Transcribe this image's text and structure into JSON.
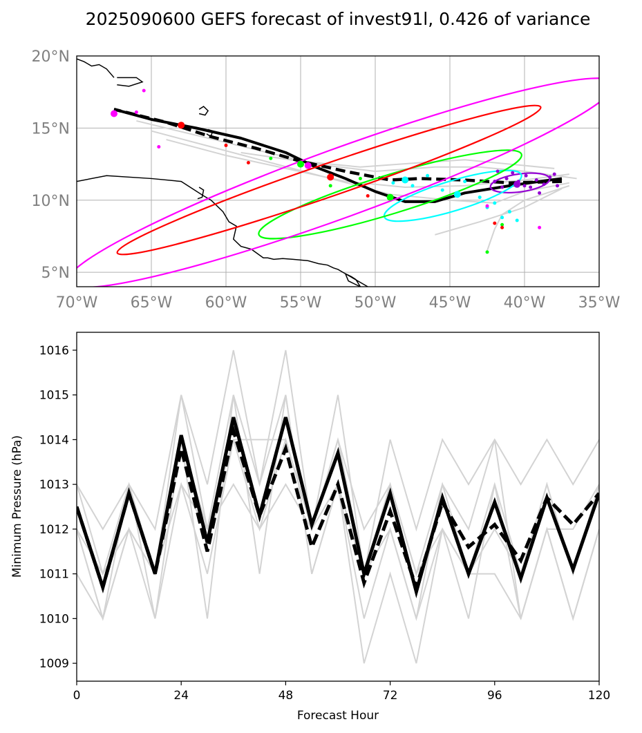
{
  "chart_data": [
    {
      "type": "map",
      "title": "2025090600 GEFS forecast of invest91l, 0.426 of variance",
      "xlim": [
        -70,
        -35
      ],
      "ylim": [
        4,
        20
      ],
      "xticks": [
        -70,
        -65,
        -60,
        -55,
        -50,
        -45,
        -40,
        -35
      ],
      "xtick_labels": [
        "70°W",
        "65°W",
        "60°W",
        "55°W",
        "50°W",
        "45°W",
        "40°W",
        "35°W"
      ],
      "yticks": [
        5,
        10,
        15,
        20
      ],
      "ytick_labels": [
        "5°N",
        "10°N",
        "15°N",
        "20°N"
      ],
      "grid": true,
      "colors": {
        "mean": "#000000",
        "spread": "#d3d3d3",
        "day1": "#9400d3",
        "day2": "#00ffff",
        "day3": "#00ff00",
        "day4": "#ff0000",
        "day5": "#ff00ff",
        "coast": "#000000"
      },
      "mean_track": {
        "lon": [
          -37.5,
          -39,
          -41,
          -44,
          -46,
          -48,
          -50,
          -52,
          -54,
          -56,
          -59,
          -62,
          -65,
          -67.5
        ],
        "lat": [
          11.5,
          11.3,
          11.0,
          10.5,
          9.9,
          9.9,
          10.6,
          11.5,
          12.3,
          13.3,
          14.3,
          15.0,
          15.6,
          16.3
        ]
      },
      "control_track": {
        "lon": [
          -37.5,
          -41,
          -44,
          -47,
          -49,
          -52,
          -55,
          -58,
          -61,
          -64,
          -67.5
        ],
        "lat": [
          11.3,
          11.2,
          11.4,
          11.5,
          11.4,
          12.0,
          12.7,
          13.6,
          14.4,
          15.4,
          16.3
        ]
      },
      "ensemble_tracks": [
        {
          "lon": [
            -36.5,
            -40,
            -43,
            -46,
            -50,
            -54,
            -58,
            -62,
            -66
          ],
          "lat": [
            11.5,
            12.0,
            12.3,
            12.3,
            12.0,
            12.5,
            13.5,
            14.5,
            15.5
          ]
        },
        {
          "lon": [
            -37,
            -40,
            -42,
            -45,
            -49,
            -53,
            -57,
            -61,
            -65
          ],
          "lat": [
            11.2,
            10.6,
            9.8,
            10.0,
            10.4,
            11.5,
            12.6,
            13.7,
            14.8
          ]
        },
        {
          "lon": [
            -37,
            -40,
            -41.5,
            -42,
            -42.5
          ],
          "lat": [
            11.0,
            10.0,
            9.0,
            8.0,
            6.5
          ]
        },
        {
          "lon": [
            -38,
            -41,
            -44,
            -47,
            -51,
            -55,
            -59
          ],
          "lat": [
            12.2,
            12.5,
            12.8,
            12.6,
            12.3,
            12.7,
            13.3
          ]
        },
        {
          "lon": [
            -37.5,
            -40,
            -43,
            -46
          ],
          "lat": [
            10.8,
            9.5,
            8.5,
            7.6
          ]
        },
        {
          "lon": [
            -37,
            -40,
            -44,
            -48,
            -52,
            -56,
            -60,
            -64
          ],
          "lat": [
            11.8,
            11.4,
            11.0,
            10.9,
            11.3,
            12.2,
            13.1,
            14.2
          ]
        }
      ],
      "ellipses": [
        {
          "day": 1,
          "center": [
            -40.3,
            11.2
          ],
          "semi_major_deg": 2.0,
          "semi_minor_deg": 0.6,
          "angle_deg": -8,
          "color": "#9400d3"
        },
        {
          "day": 2,
          "center": [
            -44.8,
            10.3
          ],
          "semi_major_deg": 4.8,
          "semi_minor_deg": 1.0,
          "angle_deg": -17,
          "color": "#00ffff"
        },
        {
          "day": 3,
          "center": [
            -49.0,
            10.4
          ],
          "semi_major_deg": 9.2,
          "semi_minor_deg": 1.3,
          "angle_deg": -17,
          "color": "#00ff00"
        },
        {
          "day": 4,
          "center": [
            -53.1,
            11.4
          ],
          "semi_major_deg": 15.0,
          "semi_minor_deg": 1.1,
          "angle_deg": -19,
          "color": "#ff0000"
        },
        {
          "day": 5,
          "center": [
            -52.3,
            11.2
          ],
          "semi_major_deg": 19.5,
          "semi_minor_deg": 2.3,
          "angle_deg": -20,
          "color": "#ff00ff"
        }
      ],
      "mean_positions": [
        {
          "day": 1,
          "lon": -40.5,
          "lat": 11.1
        },
        {
          "day": 2,
          "lon": -44.5,
          "lat": 10.4
        },
        {
          "day": 3,
          "lon": -49,
          "lat": 10.2
        },
        {
          "day": 4,
          "lon": -63,
          "lat": 15.2
        },
        {
          "day": 5,
          "lon": -67.5,
          "lat": 16.0
        }
      ],
      "control_positions": [
        {
          "day": 2,
          "lon": -48,
          "lat": 11.4
        },
        {
          "day": 3,
          "lon": -55,
          "lat": 12.5
        },
        {
          "day": 4,
          "lon": -53,
          "lat": 11.6
        },
        {
          "day": 5,
          "lon": -54.5,
          "lat": 12.4
        }
      ],
      "member_points": [
        {
          "day": 1,
          "lon": -41.8,
          "lat": 12.0
        },
        {
          "day": 1,
          "lon": -41.2,
          "lat": 11.5
        },
        {
          "day": 1,
          "lon": -40.8,
          "lat": 11.9
        },
        {
          "day": 1,
          "lon": -40.4,
          "lat": 11.3
        },
        {
          "day": 1,
          "lon": -39.9,
          "lat": 11.7
        },
        {
          "day": 1,
          "lon": -39.6,
          "lat": 10.9
        },
        {
          "day": 1,
          "lon": -39.2,
          "lat": 11.4
        },
        {
          "day": 1,
          "lon": -38.7,
          "lat": 11.1
        },
        {
          "day": 1,
          "lon": -38.3,
          "lat": 11.6
        },
        {
          "day": 1,
          "lon": -37.8,
          "lat": 11.0
        },
        {
          "day": 1,
          "lon": -41.5,
          "lat": 10.9
        },
        {
          "day": 1,
          "lon": -39.0,
          "lat": 10.5
        },
        {
          "day": 1,
          "lon": -42.0,
          "lat": 11.3
        },
        {
          "day": 1,
          "lon": -40.0,
          "lat": 11.0
        },
        {
          "day": 1,
          "lon": -38.0,
          "lat": 11.8
        },
        {
          "day": 2,
          "lon": -46.5,
          "lat": 11.7
        },
        {
          "day": 2,
          "lon": -45.5,
          "lat": 10.7
        },
        {
          "day": 2,
          "lon": -43,
          "lat": 10.2
        },
        {
          "day": 2,
          "lon": -42,
          "lat": 9.8
        },
        {
          "day": 2,
          "lon": -41,
          "lat": 9.2
        },
        {
          "day": 2,
          "lon": -41.5,
          "lat": 8.8
        },
        {
          "day": 2,
          "lon": -42.5,
          "lat": 9.5
        },
        {
          "day": 2,
          "lon": -40.5,
          "lat": 8.6
        },
        {
          "day": 2,
          "lon": -44,
          "lat": 11.3
        },
        {
          "day": 2,
          "lon": -48.8,
          "lat": 11.2
        },
        {
          "day": 2,
          "lon": -47.5,
          "lat": 11.0
        },
        {
          "day": 3,
          "lon": -51,
          "lat": 11.5
        },
        {
          "day": 3,
          "lon": -42.5,
          "lat": 6.4
        },
        {
          "day": 3,
          "lon": -41.5,
          "lat": 8.3
        },
        {
          "day": 3,
          "lon": -53,
          "lat": 11.0
        },
        {
          "day": 3,
          "lon": -57,
          "lat": 12.9
        },
        {
          "day": 4,
          "lon": -60,
          "lat": 13.8
        },
        {
          "day": 4,
          "lon": -58.5,
          "lat": 12.6
        },
        {
          "day": 4,
          "lon": -42,
          "lat": 8.4
        },
        {
          "day": 4,
          "lon": -41.5,
          "lat": 8.1
        },
        {
          "day": 4,
          "lon": -50.5,
          "lat": 10.3
        },
        {
          "day": 5,
          "lon": -65.5,
          "lat": 17.6
        },
        {
          "day": 5,
          "lon": -66,
          "lat": 16.1
        },
        {
          "day": 5,
          "lon": -64.5,
          "lat": 13.7
        },
        {
          "day": 5,
          "lon": -42.5,
          "lat": 9.6
        },
        {
          "day": 5,
          "lon": -39,
          "lat": 8.1
        }
      ],
      "coastlines": [
        {
          "lon": [
            -70,
            -68,
            -65,
            -63,
            -61.5,
            -61,
            -60.2,
            -59.8,
            -59.3,
            -59.5,
            -59,
            -58.3,
            -57.5,
            -57.2,
            -56.8,
            -56.2,
            -55.5,
            -54.5,
            -53.8,
            -53.2,
            -52.8,
            -52.5,
            -52,
            -51.6,
            -51.3,
            -51,
            -51.8,
            -52,
            -50.5
          ],
          "lat": [
            11.3,
            11.7,
            11.5,
            11.3,
            10.3,
            10.0,
            9.2,
            8.5,
            8.2,
            7.3,
            6.8,
            6.6,
            6.0,
            6.0,
            5.9,
            5.95,
            5.9,
            5.8,
            5.6,
            5.5,
            5.3,
            5.2,
            4.9,
            4.7,
            4.5,
            4.0,
            4.4,
            4.9,
            4.0
          ]
        },
        {
          "lon": [
            -70,
            -69.5,
            -69,
            -68.5,
            -68,
            -67.5
          ],
          "lat": [
            19.8,
            19.6,
            19.3,
            19.4,
            19.1,
            18.5
          ]
        },
        {
          "lon": [
            -67.3,
            -66,
            -65.6,
            -66.5,
            -67.3
          ],
          "lat": [
            18.5,
            18.5,
            18.2,
            17.9,
            18.0
          ]
        },
        {
          "lon": [
            -61.8,
            -61.5,
            -61.2,
            -61.4,
            -61.8
          ],
          "lat": [
            16.3,
            16.5,
            16.2,
            15.9,
            16.0
          ]
        },
        {
          "lon": [
            -61.2,
            -60.9,
            -61.0,
            -61.3
          ],
          "lat": [
            14.9,
            14.8,
            14.4,
            14.6
          ]
        },
        {
          "lon": [
            -61.8,
            -61.5,
            -61.6,
            -61.9
          ],
          "lat": [
            10.9,
            10.7,
            10.2,
            10.1
          ]
        }
      ]
    },
    {
      "type": "line",
      "xlabel": "Forecast Hour",
      "ylabel": "Minimum Pressure (hPa)",
      "xlim": [
        0,
        120
      ],
      "ylim": [
        1008.6,
        1016.4
      ],
      "xticks": [
        0,
        24,
        48,
        72,
        96,
        120
      ],
      "yticks": [
        1009,
        1010,
        1011,
        1012,
        1013,
        1014,
        1015,
        1016
      ],
      "x": [
        0,
        6,
        12,
        18,
        24,
        30,
        36,
        42,
        48,
        54,
        60,
        66,
        72,
        78,
        84,
        90,
        96,
        102,
        108,
        114,
        120
      ],
      "series": [
        {
          "name": "mean",
          "color": "#000000",
          "style": "solid",
          "values": [
            1012.5,
            1010.7,
            1012.8,
            1011.0,
            1014.1,
            1011.7,
            1014.5,
            1012.3,
            1014.5,
            1012.1,
            1013.7,
            1011.0,
            1012.8,
            1010.6,
            1012.7,
            1011.0,
            1012.6,
            1010.9,
            1012.7,
            1011.1,
            1012.8
          ]
        },
        {
          "name": "control",
          "color": "#000000",
          "style": "dashed",
          "values": [
            1012.5,
            1010.7,
            1012.8,
            1011.0,
            1013.8,
            1011.5,
            1014.2,
            1012.3,
            1013.8,
            1011.6,
            1013.0,
            1010.8,
            1012.4,
            1010.7,
            1012.6,
            1011.6,
            1012.1,
            1011.3,
            1012.7,
            1012.1,
            1012.8
          ]
        },
        {
          "name": "member",
          "color": "#d3d3d3",
          "style": "solid",
          "values": [
            1013,
            1012,
            1013,
            1012,
            1015,
            1013,
            1016,
            1013,
            1016,
            1012,
            1015,
            1011,
            1014,
            1012,
            1014,
            1013,
            1014,
            1013,
            1014,
            1013,
            1014
          ]
        },
        {
          "name": "member",
          "color": "#d3d3d3",
          "style": "solid",
          "values": [
            1012,
            1010,
            1012,
            1010,
            1014,
            1012,
            1015,
            1013,
            1015,
            1011,
            1013,
            1009,
            1011,
            1009,
            1012,
            1010,
            1013,
            1010,
            1012,
            1010,
            1012
          ]
        },
        {
          "name": "member",
          "color": "#d3d3d3",
          "style": "solid",
          "values": [
            1011,
            1010,
            1012,
            1011,
            1013,
            1011,
            1014,
            1012,
            1014,
            1012,
            1014,
            1012,
            1013,
            1011,
            1013,
            1011,
            1012,
            1011,
            1013,
            1011,
            1013
          ]
        },
        {
          "name": "member",
          "color": "#d3d3d3",
          "style": "solid",
          "values": [
            1012,
            1011,
            1013,
            1011,
            1015,
            1012,
            1014,
            1014,
            1014,
            1012,
            1013,
            1011,
            1012,
            1010,
            1013,
            1012,
            1014,
            1010,
            1012,
            1012,
            1013
          ]
        },
        {
          "name": "member",
          "color": "#d3d3d3",
          "style": "solid",
          "values": [
            1013,
            1011,
            1012,
            1011,
            1014,
            1010,
            1015,
            1011,
            1015,
            1011,
            1013,
            1010,
            1012,
            1010,
            1012,
            1011,
            1011,
            1010,
            1012,
            1010,
            1012
          ]
        },
        {
          "name": "member",
          "color": "#d3d3d3",
          "style": "solid",
          "values": [
            1012,
            1010,
            1013,
            1010,
            1013,
            1012,
            1013,
            1012,
            1013,
            1012,
            1014,
            1011,
            1013,
            1011,
            1012,
            1011,
            1013,
            1011,
            1013,
            1011,
            1013
          ]
        }
      ]
    }
  ]
}
